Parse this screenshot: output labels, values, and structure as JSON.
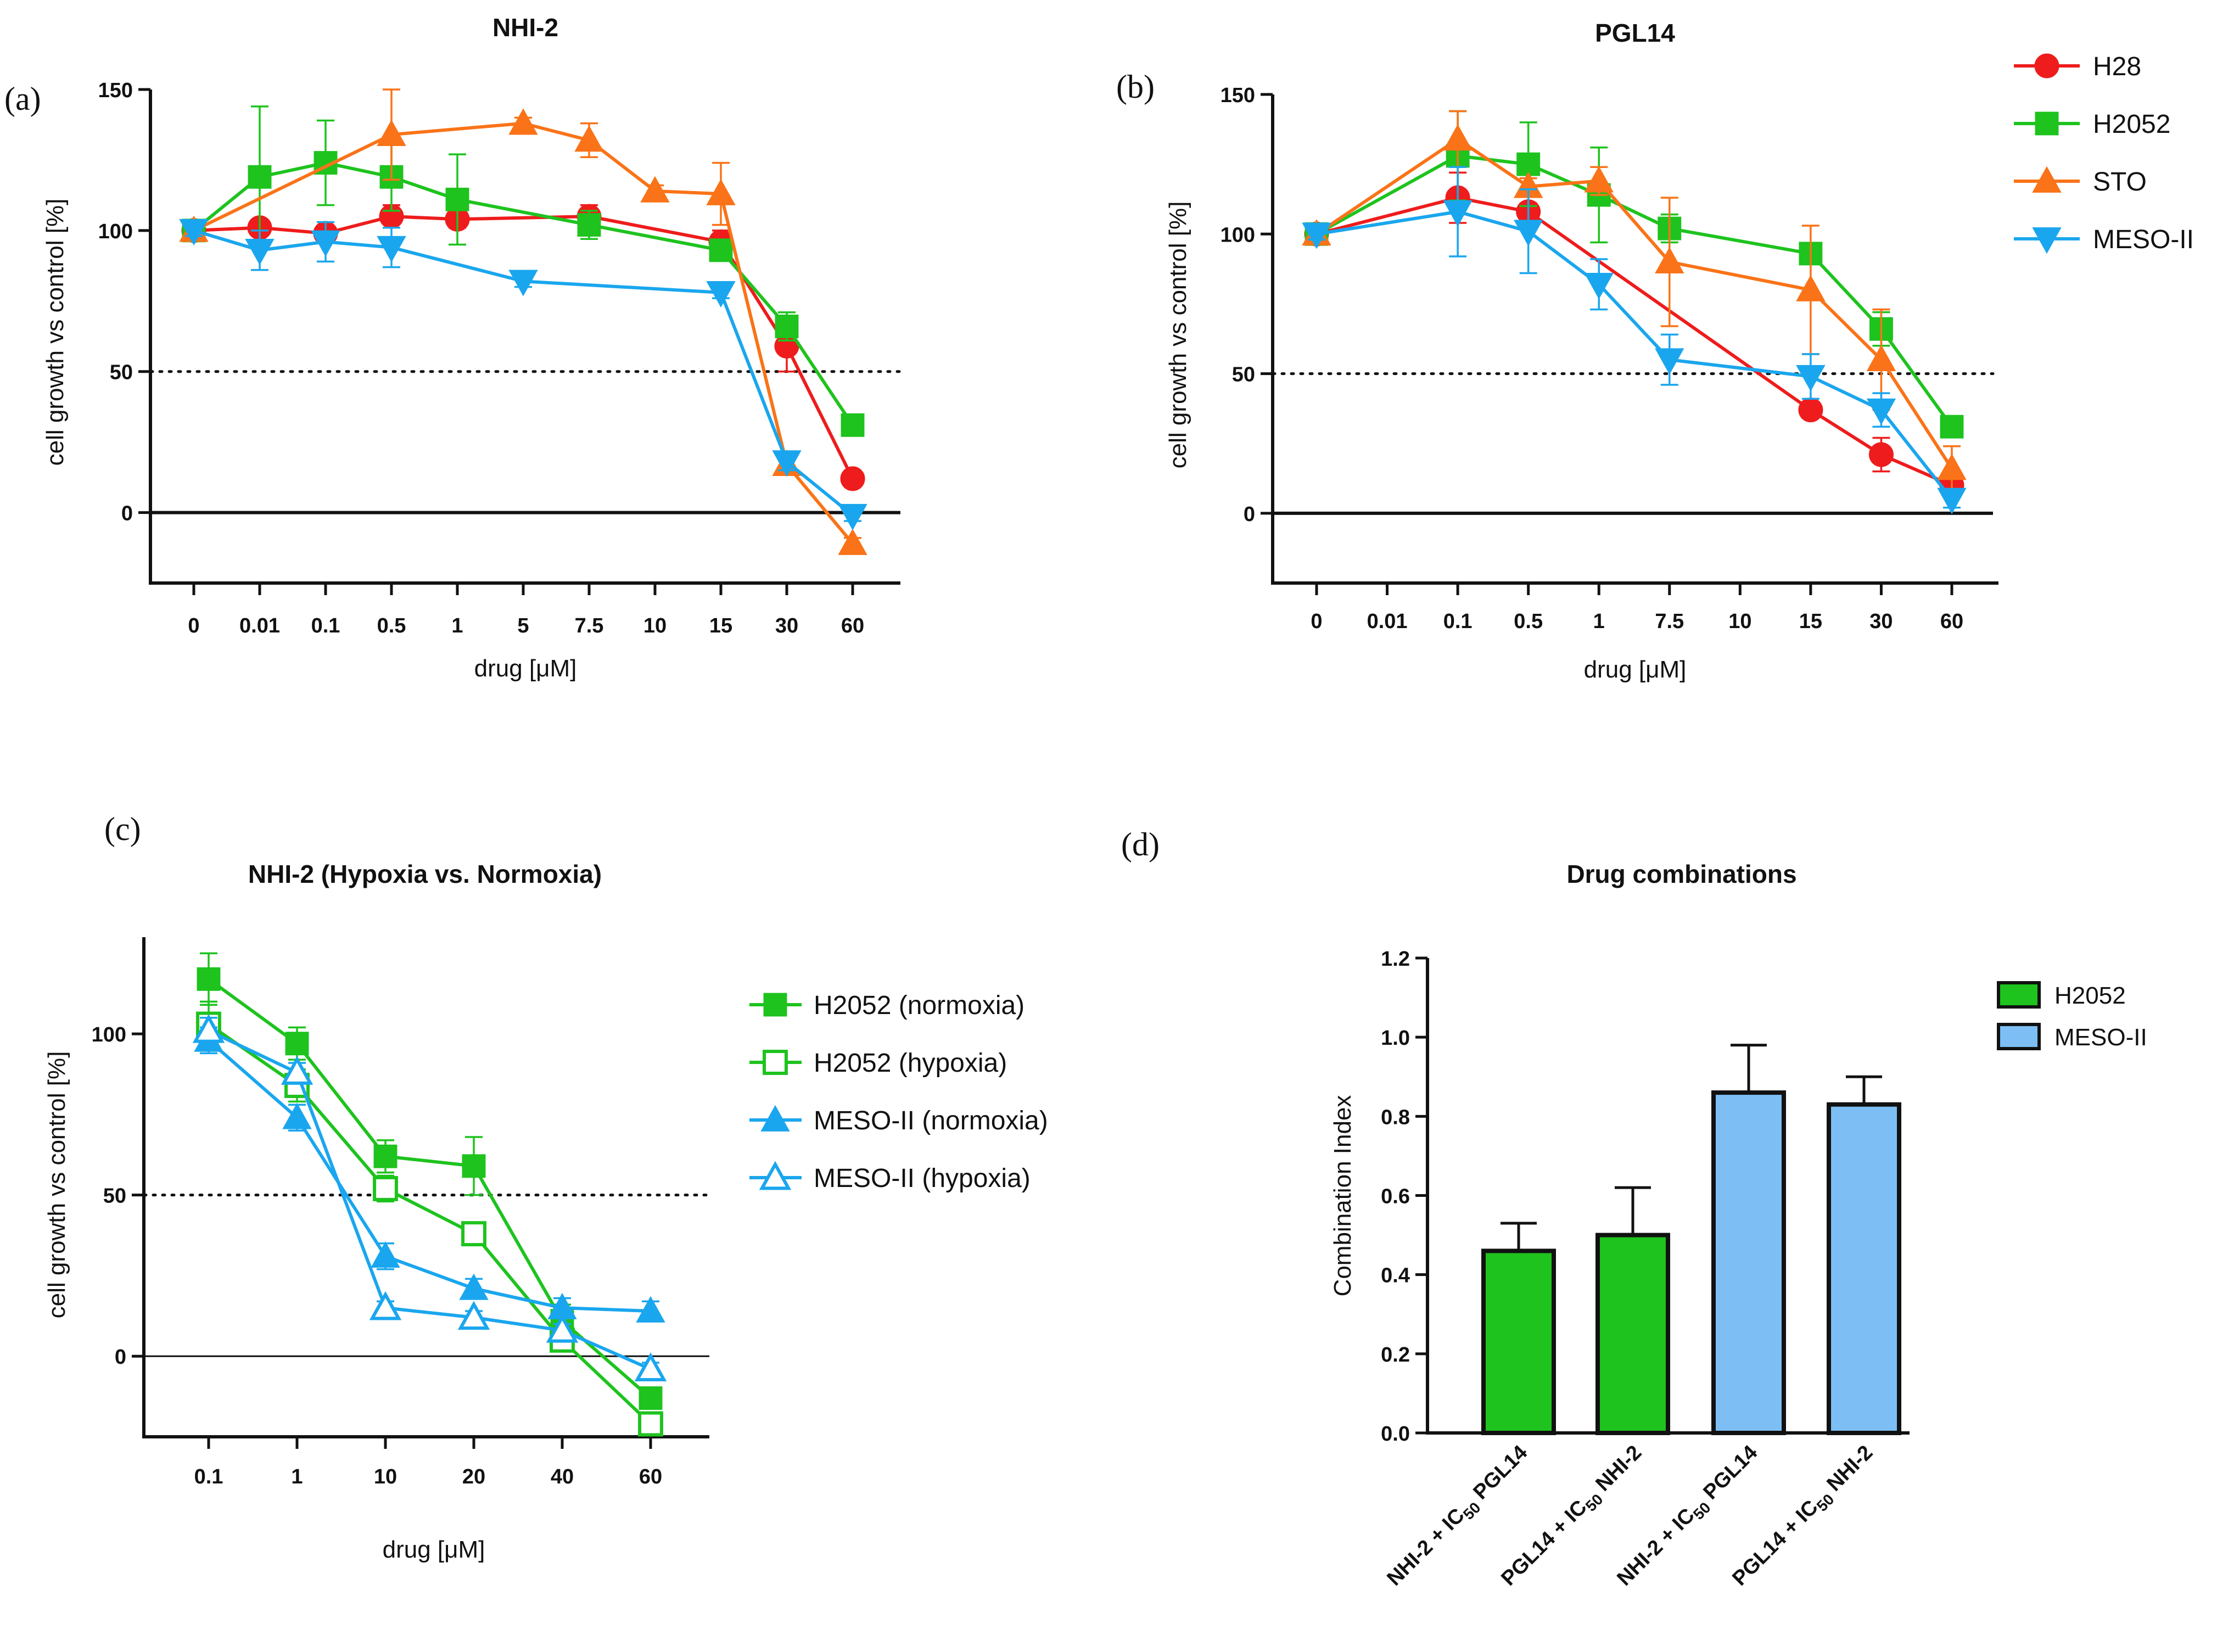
{
  "colors": {
    "H28": "#ee1c1c",
    "H2052": "#1ec31e",
    "STO": "#fa7318",
    "MESO-II": "#1aa6ee",
    "bar_green": "#1ec31e",
    "bar_blue": "#7dbff5"
  },
  "chart_data": [
    {
      "id": "a",
      "panel_label": "(a)",
      "type": "line",
      "title": "NHI-2",
      "xlabel": "drug [μM]",
      "ylabel": "cell growth vs control [%]",
      "categories": [
        "0",
        "0.01",
        "0.1",
        "0.5",
        "1",
        "5",
        "7.5",
        "10",
        "15",
        "30",
        "60"
      ],
      "ylim": [
        -25,
        150
      ],
      "yticks": [
        "0",
        "50",
        "100",
        "150"
      ],
      "reference_line": 50,
      "series": [
        {
          "name": "H28",
          "marker": "circle",
          "filled": true,
          "x": [
            0,
            1,
            2,
            3,
            4,
            6,
            8,
            9,
            10
          ],
          "y": [
            100,
            101,
            99,
            105,
            104,
            105,
            96,
            59,
            12
          ],
          "err": [
            2,
            2,
            2,
            4,
            3,
            4,
            4,
            9,
            2
          ]
        },
        {
          "name": "H2052",
          "marker": "square",
          "filled": true,
          "x": [
            0,
            1,
            2,
            3,
            4,
            6,
            8,
            9,
            10
          ],
          "y": [
            100,
            119,
            124,
            119,
            111,
            102,
            93,
            66,
            31
          ],
          "err": [
            2,
            25,
            15,
            12,
            16,
            5,
            3,
            5,
            2
          ]
        },
        {
          "name": "STO",
          "marker": "triangle-up",
          "filled": true,
          "x": [
            0,
            3,
            5,
            6,
            7,
            8,
            9,
            10
          ],
          "y": [
            100,
            134,
            138,
            132,
            114,
            113,
            17,
            -11
          ],
          "err": [
            2,
            16,
            2,
            6,
            2,
            11,
            2,
            2
          ]
        },
        {
          "name": "MESO-II",
          "marker": "triangle-down",
          "filled": true,
          "x": [
            0,
            1,
            2,
            3,
            5,
            8,
            9,
            10
          ],
          "y": [
            100,
            93,
            96,
            94,
            82,
            78,
            18,
            -1
          ],
          "err": [
            2,
            7,
            7,
            7,
            2,
            2,
            3,
            2
          ]
        }
      ]
    },
    {
      "id": "b",
      "panel_label": "(b)",
      "type": "line",
      "title": "PGL14",
      "xlabel": "drug [μM]",
      "ylabel": "cell growth vs control [%]",
      "categories": [
        "0",
        "0.01",
        "0.1",
        "0.5",
        "1",
        "7.5",
        "10",
        "15",
        "30",
        "60"
      ],
      "ylim": [
        -25,
        150
      ],
      "yticks": [
        "0",
        "50",
        "100",
        "150"
      ],
      "reference_line": 50,
      "series": [
        {
          "name": "H28",
          "marker": "circle",
          "filled": true,
          "x": [
            0,
            2,
            3,
            7,
            8,
            9
          ],
          "y": [
            100,
            113,
            108,
            37,
            21,
            10
          ],
          "err": [
            2,
            9,
            3,
            2,
            6,
            2
          ]
        },
        {
          "name": "H2052",
          "marker": "square",
          "filled": true,
          "x": [
            0,
            2,
            3,
            4,
            5,
            7,
            8,
            9
          ],
          "y": [
            100,
            128,
            125,
            114,
            102,
            93,
            66,
            31
          ],
          "err": [
            2,
            16,
            15,
            17,
            5,
            2,
            6,
            2
          ]
        },
        {
          "name": "STO",
          "marker": "triangle-up",
          "filled": true,
          "x": [
            0,
            2,
            3,
            4,
            5,
            7,
            8,
            9
          ],
          "y": [
            100,
            134,
            117,
            119,
            90,
            80,
            55,
            16
          ],
          "err": [
            2,
            10,
            3,
            5,
            23,
            23,
            18,
            8
          ]
        },
        {
          "name": "MESO-II",
          "marker": "triangle-down",
          "filled": true,
          "x": [
            0,
            2,
            3,
            4,
            5,
            7,
            8,
            9
          ],
          "y": [
            100,
            108,
            101,
            82,
            55,
            49,
            37,
            5
          ],
          "err": [
            2,
            16,
            15,
            9,
            9,
            8,
            6,
            3
          ]
        }
      ],
      "legend": {
        "position": "top-right",
        "entries": [
          "H28",
          "H2052",
          "STO",
          "MESO-II"
        ]
      }
    },
    {
      "id": "c",
      "panel_label": "(c)",
      "type": "line",
      "title": "NHI-2 (Hypoxia vs. Normoxia)",
      "xlabel": "drug [μM]",
      "ylabel": "cell growth vs control [%]",
      "categories": [
        "0.1",
        "1",
        "10",
        "20",
        "40",
        "60"
      ],
      "ylim": [
        -25,
        130
      ],
      "yticks": [
        "0",
        "50",
        "100"
      ],
      "reference_line": 50,
      "series": [
        {
          "name": "H2052 (normoxia)",
          "color_key": "H2052",
          "marker": "square",
          "filled": true,
          "y": [
            117,
            97,
            62,
            59,
            11,
            -13
          ],
          "err": [
            8,
            5,
            5,
            9,
            5,
            2
          ]
        },
        {
          "name": "H2052 (hypoxia)",
          "color_key": "H2052",
          "marker": "square",
          "filled": false,
          "y": [
            103,
            84,
            52,
            38,
            5,
            -21
          ],
          "err": [
            7,
            5,
            4,
            3,
            3,
            2
          ]
        },
        {
          "name": "MESO-II (normoxia)",
          "color_key": "MESO-II",
          "marker": "triangle-up",
          "filled": true,
          "y": [
            98,
            74,
            31,
            21,
            15,
            14
          ],
          "err": [
            4,
            4,
            4,
            3,
            3,
            3
          ]
        },
        {
          "name": "MESO-II (hypoxia)",
          "color_key": "MESO-II",
          "marker": "triangle-up",
          "filled": false,
          "y": [
            101,
            88,
            15,
            12,
            8,
            -4
          ],
          "err": [
            4,
            3,
            2,
            2,
            2,
            2
          ]
        }
      ],
      "legend": {
        "position": "right",
        "entries": [
          "H2052 (normoxia)",
          "H2052 (hypoxia)",
          "MESO-II (normoxia)",
          "MESO-II (hypoxia)"
        ]
      }
    },
    {
      "id": "d",
      "panel_label": "(d)",
      "type": "bar",
      "title": "Drug combinations",
      "xlabel": "",
      "ylabel": "Combination Index",
      "categories": [
        "NHI-2 + IC50 PGL14",
        "PGL14 + IC50 NHI-2",
        "NHI-2 + IC50 PGL14",
        "PGL14 + IC50 NHI-2"
      ],
      "category_parts": [
        {
          "pre": "NHI-2 + IC",
          "sub": "50",
          "post": " PGL14"
        },
        {
          "pre": "PGL14 + IC",
          "sub": "50",
          "post": " NHI-2"
        },
        {
          "pre": "NHI-2 + IC",
          "sub": "50",
          "post": " PGL14"
        },
        {
          "pre": "PGL14 + IC",
          "sub": "50",
          "post": " NHI-2"
        }
      ],
      "values": [
        0.46,
        0.5,
        0.86,
        0.83
      ],
      "errors": [
        0.07,
        0.12,
        0.12,
        0.07
      ],
      "bar_groups": [
        "H2052",
        "H2052",
        "MESO-II",
        "MESO-II"
      ],
      "ylim": [
        0,
        1.2
      ],
      "yticks": [
        "0.0",
        "0.2",
        "0.4",
        "0.6",
        "0.8",
        "1.0",
        "1.2"
      ],
      "legend": {
        "position": "top-right",
        "entries": [
          "H2052",
          "MESO-II"
        ]
      }
    }
  ]
}
